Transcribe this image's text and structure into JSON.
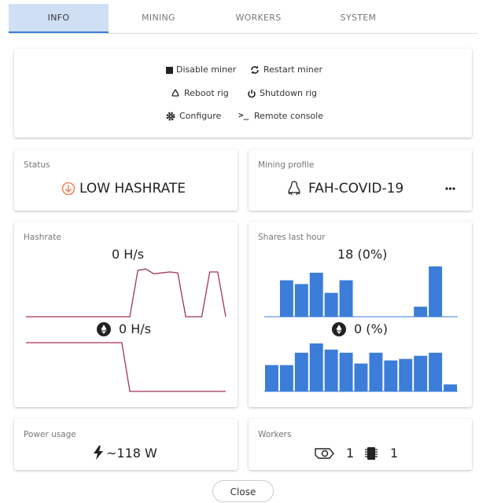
{
  "tabs": [
    "INFO",
    "MINING",
    "WORKERS",
    "SYSTEM"
  ],
  "actions": [
    "Disable miner",
    "Restart miner",
    "Reboot rig",
    "Shutdown rig",
    "Configure",
    "Remote console"
  ],
  "status": {
    "label": "Status",
    "value": "LOW HASHRATE"
  },
  "mining_profile": {
    "label": "Mining profile",
    "value": "FAH-COVID-19"
  },
  "hashrate": {
    "label": "Hashrate",
    "total": "0 H/s",
    "eth": "0 H/s",
    "chart": {
      "type": "line",
      "color": "#a3325c",
      "ylim": [
        0,
        100
      ],
      "values": [
        0,
        0,
        0,
        0,
        0,
        0,
        0,
        0,
        0,
        0,
        0,
        0,
        0,
        0,
        95,
        98,
        88,
        90,
        92,
        90,
        0,
        0,
        0,
        92,
        92,
        0
      ]
    },
    "eth_chart": {
      "type": "line",
      "color": "#a3325c",
      "ylim": [
        0,
        100
      ],
      "values": [
        100,
        100,
        100,
        100,
        100,
        100,
        100,
        100,
        100,
        100,
        100,
        100,
        100,
        0,
        0,
        0,
        0,
        0,
        0,
        0,
        0,
        0,
        0,
        0,
        0,
        0
      ]
    }
  },
  "shares": {
    "label": "Shares last hour",
    "total": "18 (0%)",
    "eth": "0 (%)",
    "chart": {
      "type": "bar",
      "color": "#3b7dd8",
      "ylim": [
        0,
        4
      ],
      "values": [
        0,
        2.9,
        2.6,
        3.5,
        1.9,
        2.9,
        0,
        0,
        0,
        0,
        0.8,
        4,
        0
      ]
    },
    "eth_chart": {
      "type": "bar",
      "color": "#3b7dd8",
      "ylim": [
        0,
        65
      ],
      "values": [
        34,
        34,
        50,
        62,
        54,
        50,
        36,
        50,
        40,
        42,
        46,
        50,
        9
      ]
    }
  },
  "power": {
    "label": "Power usage",
    "value": "~118 W"
  },
  "workers": {
    "label": "Workers",
    "gpus": "1",
    "cpus": "1"
  },
  "close": "Close"
}
